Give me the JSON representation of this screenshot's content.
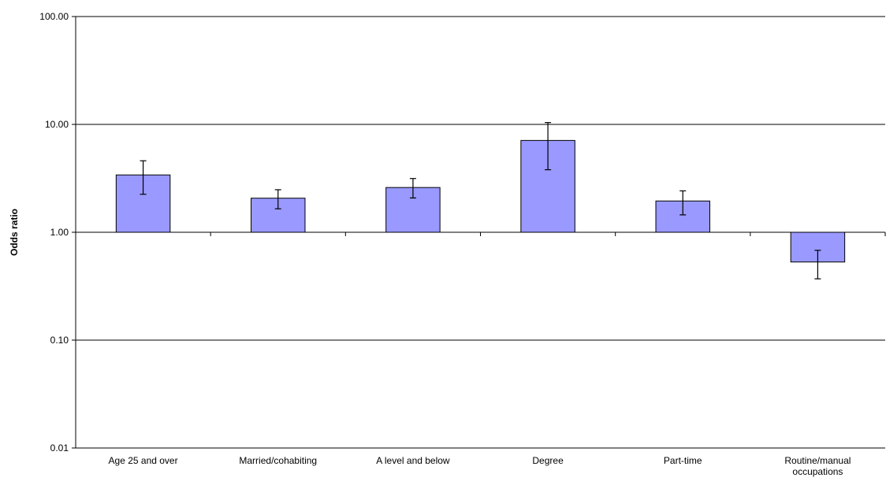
{
  "chart_data": {
    "type": "bar",
    "title": "",
    "xlabel": "",
    "ylabel": "Odds ratio",
    "yscale": "log",
    "ylim": [
      0.01,
      100
    ],
    "yticks": [
      0.01,
      0.1,
      1,
      10,
      100
    ],
    "ytick_labels": [
      "0.01",
      "0.10",
      "1.00",
      "10.00",
      "100.00"
    ],
    "baseline": 1,
    "grid": "horizontal",
    "legend": "none",
    "bar_color": "#9999ff",
    "bar_edge_color": "#000000",
    "categories": [
      "Age 25 and over",
      "Married/cohabiting",
      "A level and below",
      "Degree",
      "Part-time",
      "Routine/manual occupations"
    ],
    "category_label_lines": [
      [
        "Age 25 and over"
      ],
      [
        "Married/cohabiting"
      ],
      [
        "A level and below"
      ],
      [
        "Degree"
      ],
      [
        "Part-time"
      ],
      [
        "Routine/manual",
        "occupations"
      ]
    ],
    "values": [
      3.4,
      2.07,
      2.6,
      7.1,
      1.95,
      0.53
    ],
    "error_low": [
      2.25,
      1.65,
      2.08,
      3.8,
      1.45,
      0.37
    ],
    "error_high": [
      4.6,
      2.48,
      3.15,
      10.4,
      2.42,
      0.68
    ]
  }
}
